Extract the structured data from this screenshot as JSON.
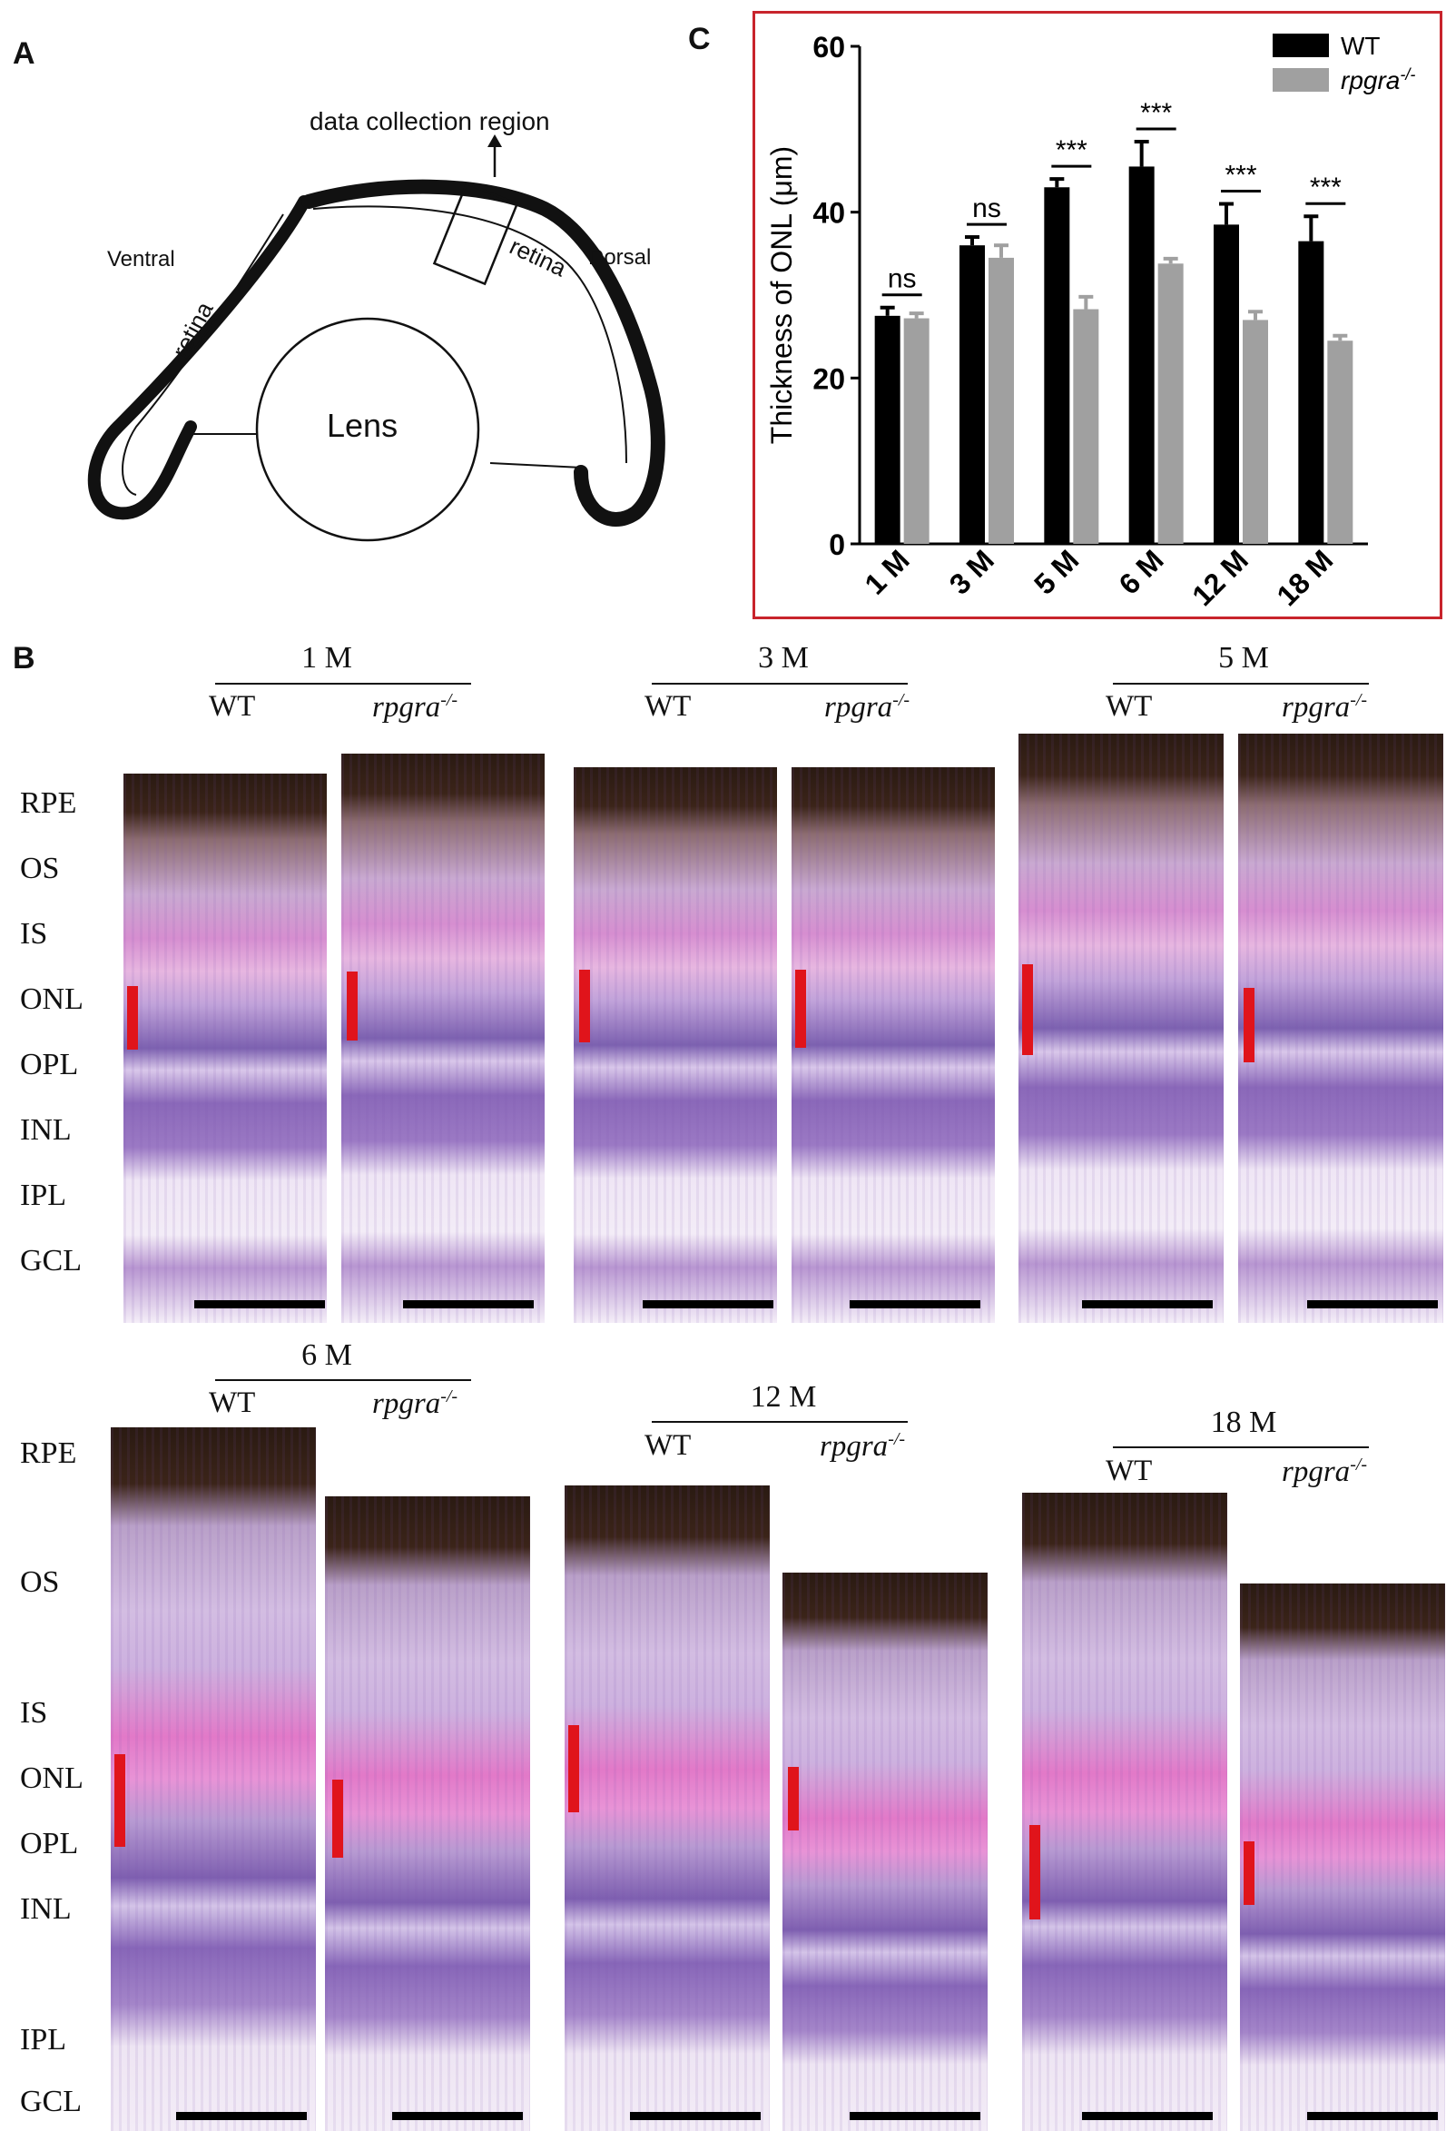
{
  "panel_labels": {
    "a": "A",
    "b": "B",
    "c": "C"
  },
  "panel_a": {
    "annotation": "data collection region",
    "ventral": "Ventral",
    "dorsal": "Dorsal",
    "retina_left": "retina",
    "retina_right": "retina",
    "lens": "Lens"
  },
  "chart_data": {
    "type": "bar",
    "categories": [
      "1 M",
      "3 M",
      "5 M",
      "6 M",
      "12 M",
      "18 M"
    ],
    "series": [
      {
        "name": "WT",
        "color": "#000000",
        "values": [
          27.5,
          36.0,
          43.0,
          45.5,
          38.5,
          36.5
        ],
        "errors": [
          1.0,
          1.0,
          1.0,
          3.0,
          2.5,
          3.0
        ]
      },
      {
        "name": "rpgra",
        "name_sup": "-/-",
        "color": "#a0a0a0",
        "values": [
          27.2,
          34.5,
          28.3,
          33.8,
          27.0,
          24.5
        ],
        "errors": [
          0.6,
          1.5,
          1.5,
          0.6,
          1.0,
          0.6
        ]
      }
    ],
    "significance": [
      "ns",
      "ns",
      "***",
      "***",
      "***",
      "***"
    ],
    "ylabel": "Thickness of ONL (μm)",
    "ylim": [
      0,
      60
    ],
    "yticks": [
      0,
      20,
      40,
      60
    ],
    "legend_position": "top-right"
  },
  "panel_b": {
    "genotypes": {
      "wt": "WT",
      "ko": "rpgra",
      "ko_sup": "-/-"
    },
    "timepoints": [
      "1 M",
      "3 M",
      "5 M",
      "6 M",
      "12 M",
      "18 M"
    ],
    "layers_top": [
      "RPE",
      "OS",
      "IS",
      "ONL",
      "OPL",
      "INL",
      "IPL",
      "GCL"
    ],
    "layers_bottom": [
      "RPE",
      "OS",
      "IS",
      "ONL",
      "OPL",
      "INL",
      "IPL",
      "GCL"
    ]
  }
}
